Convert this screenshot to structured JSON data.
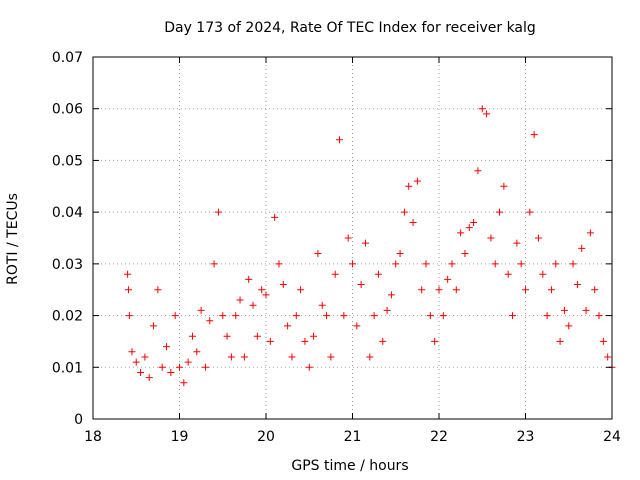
{
  "chart_data": {
    "type": "scatter",
    "title": "Day 173 of 2024, Rate Of TEC Index for receiver kalg",
    "xlabel": "GPS time / hours",
    "ylabel": "ROTI / TECUs",
    "xlim": [
      18,
      24
    ],
    "ylim": [
      0,
      0.07
    ],
    "grid": true,
    "marker": "+",
    "marker_color": "#ff0000",
    "x_ticks": [
      "18",
      "19",
      "20",
      "21",
      "22",
      "23",
      "24"
    ],
    "y_ticks": [
      "0",
      "0.01",
      "0.02",
      "0.03",
      "0.04",
      "0.05",
      "0.06",
      "0.07"
    ],
    "series": [
      {
        "name": "ROTI",
        "x": [
          18.4,
          18.41,
          18.42,
          18.45,
          18.5,
          18.55,
          18.6,
          18.65,
          18.7,
          18.75,
          18.8,
          18.85,
          18.9,
          18.95,
          19.0,
          19.05,
          19.1,
          19.15,
          19.2,
          19.25,
          19.3,
          19.35,
          19.4,
          19.45,
          19.5,
          19.55,
          19.6,
          19.65,
          19.7,
          19.75,
          19.8,
          19.85,
          19.9,
          19.95,
          20.0,
          20.05,
          20.1,
          20.15,
          20.2,
          20.25,
          20.3,
          20.35,
          20.4,
          20.45,
          20.5,
          20.55,
          20.6,
          20.65,
          20.7,
          20.75,
          20.8,
          20.85,
          20.9,
          20.95,
          21.0,
          21.05,
          21.1,
          21.15,
          21.2,
          21.25,
          21.3,
          21.35,
          21.4,
          21.45,
          21.5,
          21.55,
          21.6,
          21.65,
          21.7,
          21.75,
          21.8,
          21.85,
          21.9,
          21.95,
          22.0,
          22.05,
          22.1,
          22.15,
          22.2,
          22.25,
          22.3,
          22.35,
          22.4,
          22.45,
          22.5,
          22.55,
          22.6,
          22.65,
          22.7,
          22.75,
          22.8,
          22.85,
          22.9,
          22.95,
          23.0,
          23.05,
          23.1,
          23.15,
          23.2,
          23.25,
          23.3,
          23.35,
          23.4,
          23.45,
          23.5,
          23.55,
          23.6,
          23.65,
          23.7,
          23.75,
          23.8,
          23.85,
          23.9,
          23.95,
          24.0
        ],
        "y": [
          0.028,
          0.025,
          0.02,
          0.013,
          0.011,
          0.009,
          0.012,
          0.008,
          0.018,
          0.025,
          0.01,
          0.014,
          0.009,
          0.02,
          0.01,
          0.007,
          0.011,
          0.016,
          0.013,
          0.021,
          0.01,
          0.019,
          0.03,
          0.04,
          0.02,
          0.016,
          0.012,
          0.02,
          0.023,
          0.012,
          0.027,
          0.022,
          0.016,
          0.025,
          0.024,
          0.015,
          0.039,
          0.03,
          0.026,
          0.018,
          0.012,
          0.02,
          0.025,
          0.015,
          0.01,
          0.016,
          0.032,
          0.022,
          0.02,
          0.012,
          0.028,
          0.054,
          0.02,
          0.035,
          0.03,
          0.018,
          0.026,
          0.034,
          0.012,
          0.02,
          0.028,
          0.015,
          0.021,
          0.024,
          0.03,
          0.032,
          0.04,
          0.045,
          0.038,
          0.046,
          0.025,
          0.03,
          0.02,
          0.015,
          0.025,
          0.02,
          0.027,
          0.03,
          0.025,
          0.036,
          0.032,
          0.037,
          0.038,
          0.048,
          0.06,
          0.059,
          0.035,
          0.03,
          0.04,
          0.045,
          0.028,
          0.02,
          0.034,
          0.03,
          0.025,
          0.04,
          0.055,
          0.035,
          0.028,
          0.02,
          0.025,
          0.03,
          0.015,
          0.021,
          0.018,
          0.03,
          0.026,
          0.033,
          0.021,
          0.036,
          0.025,
          0.02,
          0.015,
          0.012,
          0.01
        ]
      }
    ]
  }
}
